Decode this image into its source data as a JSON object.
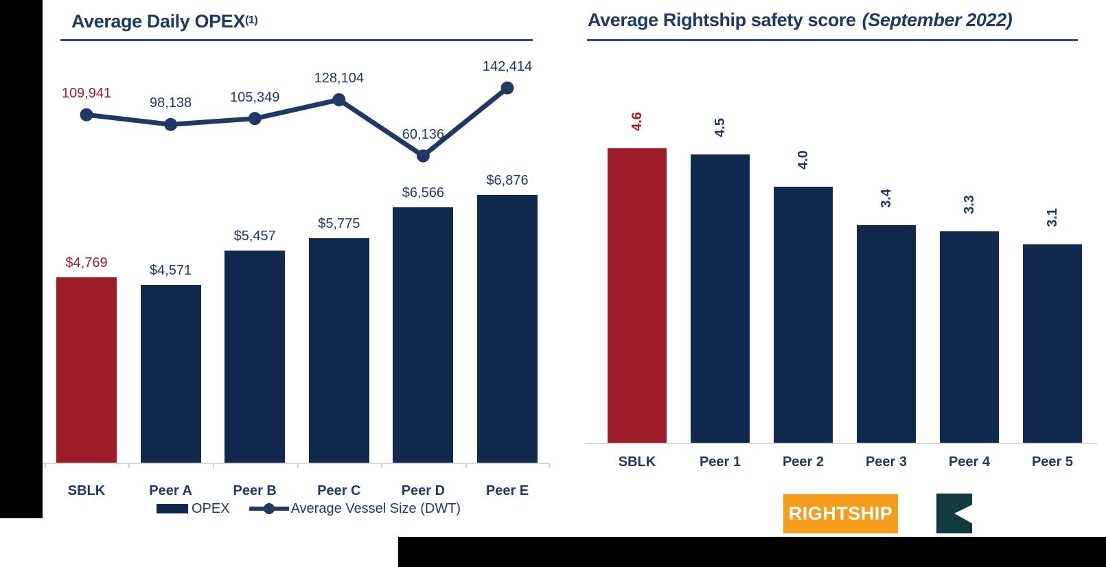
{
  "colors": {
    "navy_bar": "#12294E",
    "navy_text": "#1F3864",
    "highlight_red": "#9E1B2A",
    "line_navy": "#1F3864",
    "axis_gray": "#D9D9D9",
    "underline_blue": "#2F4B7C",
    "rightship_orange": "#F79D1E",
    "flag_teal": "#123A40",
    "black_bar": "#000000"
  },
  "chart_data": [
    {
      "type": "bar+line",
      "title": "Average Daily OPEX",
      "title_superscript": "(1)",
      "categories": [
        "SBLK",
        "Peer A",
        "Peer B",
        "Peer C",
        "Peer D",
        "Peer E"
      ],
      "highlight_index": 0,
      "series": [
        {
          "name": "OPEX",
          "type": "bar",
          "values": [
            4769,
            4571,
            5457,
            5775,
            6566,
            6876
          ],
          "labels": [
            "$4,769",
            "$4,571",
            "$5,457",
            "$5,775",
            "$6,566",
            "$6,876"
          ]
        },
        {
          "name": "Average Vessel Size (DWT)",
          "type": "line",
          "values": [
            109941,
            98138,
            105349,
            128104,
            60136,
            142414
          ],
          "labels": [
            "109,941",
            "98,138",
            "105,349",
            "128,104",
            "60,136",
            "142,414"
          ]
        }
      ],
      "legend": [
        {
          "label": "OPEX",
          "marker": "bar-swatch"
        },
        {
          "label": "Average Vessel Size (DWT)",
          "marker": "line-dot"
        }
      ],
      "layout_hints": {
        "value_axis_visible": false,
        "grid": false,
        "legend_position": "bottom"
      }
    },
    {
      "type": "bar",
      "title": "Average Rightship safety score",
      "title_suffix": "(September 2022)",
      "categories": [
        "SBLK",
        "Peer 1",
        "Peer 2",
        "Peer 3",
        "Peer 4",
        "Peer 5"
      ],
      "values": [
        4.6,
        4.5,
        4.0,
        3.4,
        3.3,
        3.1
      ],
      "labels": [
        "4.6",
        "4.5",
        "4.0",
        "3.4",
        "3.3",
        "3.1"
      ],
      "highlight_index": 0,
      "layout_hints": {
        "value_axis_visible": false,
        "grid": false,
        "value_labels": "rotated-90"
      }
    }
  ],
  "footer": {
    "rightship_logo_text": "RIGHTSHIP",
    "flag_logo": "star-bulk-flag-mark"
  }
}
